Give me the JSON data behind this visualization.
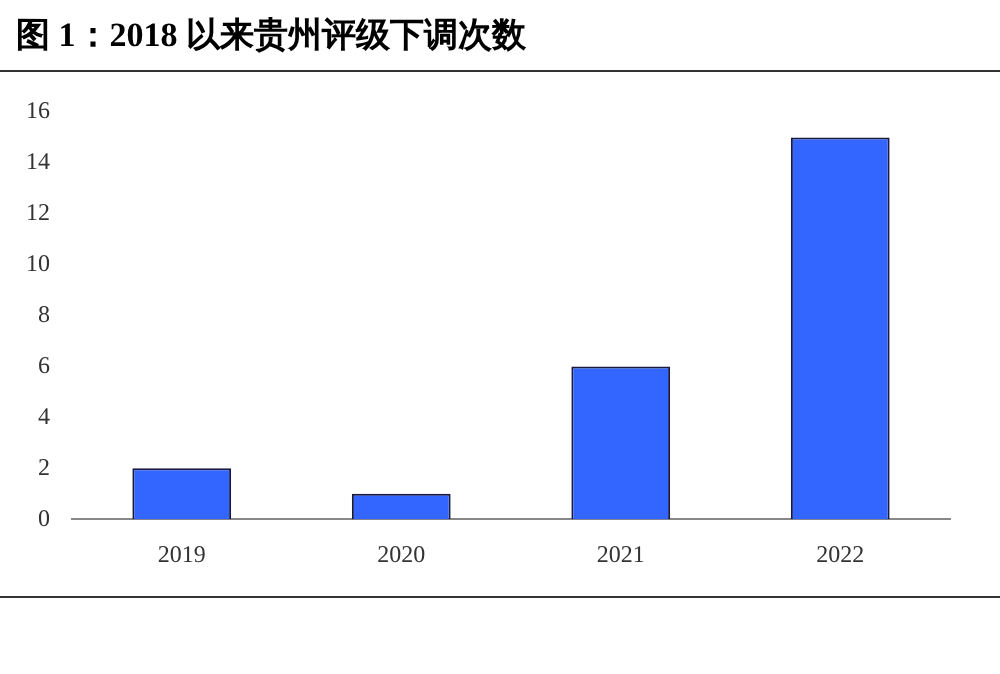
{
  "chart_data": {
    "type": "bar",
    "title": "图 1：2018 以来贵州评级下调次数",
    "categories": [
      "2019",
      "2020",
      "2021",
      "2022"
    ],
    "values": [
      2,
      1,
      6,
      15
    ],
    "color": "#3366ff",
    "ylim": [
      0,
      16
    ],
    "yticks": [
      0,
      2,
      4,
      6,
      8,
      10,
      12,
      14,
      16
    ],
    "grid": false,
    "legend": false
  }
}
